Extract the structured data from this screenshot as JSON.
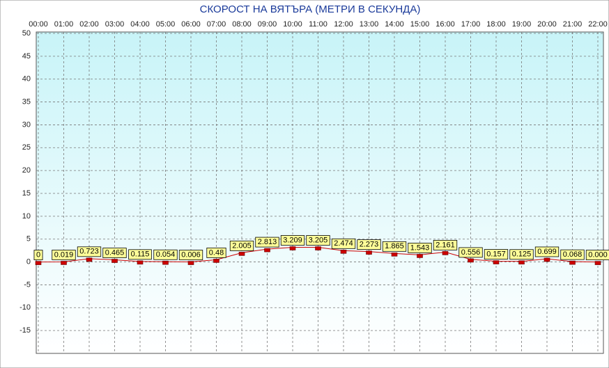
{
  "chart_data": {
    "type": "line",
    "title": "СКОРОСТ НА ВЯТЪРА (МЕТРИ В СЕКУНДА)",
    "categories": [
      "00:00",
      "01:00",
      "02:00",
      "03:00",
      "04:00",
      "05:00",
      "06:00",
      "07:00",
      "08:00",
      "09:00",
      "10:00",
      "11:00",
      "12:00",
      "13:00",
      "14:00",
      "15:00",
      "16:00",
      "17:00",
      "18:00",
      "19:00",
      "20:00",
      "21:00",
      "22:00"
    ],
    "values": [
      0,
      0.019,
      0.723,
      0.465,
      0.115,
      0.054,
      0.006,
      0.48,
      2.005,
      2.813,
      3.209,
      3.205,
      2.474,
      2.273,
      1.865,
      1.543,
      2.161,
      0.556,
      0.157,
      0.125,
      0.699,
      0.068,
      0.0
    ],
    "value_labels": [
      "0",
      "0.019",
      "0.723",
      "0.465",
      "0.115",
      "0.054",
      "0.006",
      "0.48",
      "2.005",
      "2.813",
      "3.209",
      "3.205",
      "2.474",
      "2.273",
      "1.865",
      "1.543",
      "2.161",
      "0.556",
      "0.157",
      "0.125",
      "0.699",
      "0.068",
      "0.000"
    ],
    "color": "#cc0000",
    "ylim": [
      -20,
      50
    ],
    "yticks": [
      -15,
      -10,
      -5,
      0,
      5,
      10,
      15,
      20,
      25,
      30,
      35,
      40,
      45,
      50
    ],
    "grid": true
  }
}
